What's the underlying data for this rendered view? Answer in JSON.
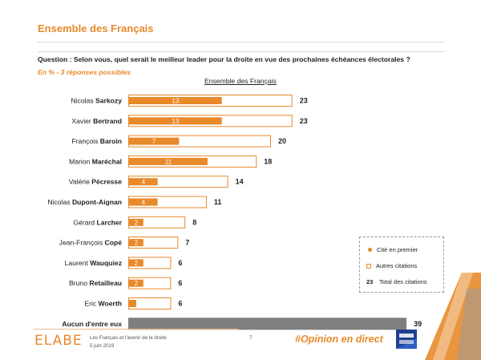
{
  "header": {
    "title": "Ensemble des Français",
    "question": "Question : Selon vous, quel serait le meilleur leader pour la droite en vue des prochaines échéances électorales ?",
    "note": "En % - 3 réponses possibles"
  },
  "chart_data": {
    "type": "bar",
    "title": "Ensemble des Français",
    "categories": [
      {
        "first": "Nicolas ",
        "last": "Sarkozy"
      },
      {
        "first": "Xavier ",
        "last": "Bertrand"
      },
      {
        "first": "François ",
        "last": "Baroin"
      },
      {
        "first": "Marion ",
        "last": "Maréchal"
      },
      {
        "first": "Valérie ",
        "last": "Pécresse"
      },
      {
        "first": "Nicolas ",
        "last": "Dupont-Aignan"
      },
      {
        "first": "Gérard ",
        "last": "Larcher"
      },
      {
        "first": "Jean-François ",
        "last": "Copé"
      },
      {
        "first": "Laurent ",
        "last": "Wauquiez"
      },
      {
        "first": "Bruno ",
        "last": "Retailleau"
      },
      {
        "first": "Eric ",
        "last": "Woerth"
      },
      {
        "first": "",
        "last": "Aucun d'entre eux"
      }
    ],
    "series": [
      {
        "name": "Cité en premier",
        "values": [
          13,
          13,
          7,
          11,
          4,
          4,
          2,
          2,
          2,
          2,
          1,
          null
        ],
        "labels": [
          "13",
          "13",
          "7",
          "11",
          "4",
          "4",
          "2",
          "2",
          "2",
          "2",
          "",
          ""
        ]
      },
      {
        "name": "Total des citations",
        "values": [
          23,
          23,
          20,
          18,
          14,
          11,
          8,
          7,
          6,
          6,
          6,
          39
        ]
      }
    ],
    "xlim": [
      0,
      39
    ],
    "colors": {
      "first": "#e8892a",
      "total_border": "#e8892a",
      "none": "#7f7f7f"
    }
  },
  "legend": {
    "first_label": "Cité en premier",
    "others_label": "Autres citations",
    "total_number": "23",
    "total_label": "Total des citations"
  },
  "footer": {
    "brand": "ELABE",
    "study_title": "Les Français et l'avenir de la droite",
    "date": "5 juin 2019",
    "page_number": "7",
    "hashtag": "#Opinion en direct"
  }
}
